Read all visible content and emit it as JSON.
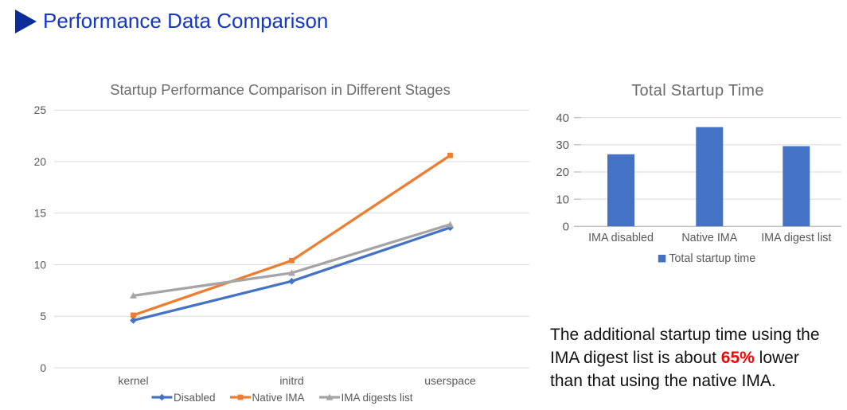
{
  "header": {
    "title": "Performance Data Comparison"
  },
  "annotation": {
    "before": "The additional startup time using the IMA digest list is about ",
    "highlight": "65%",
    "after": " lower than that using the native IMA.",
    "highlight_color": "#ff0000"
  },
  "chart_data": [
    {
      "type": "line",
      "title": "Startup Performance Comparison in Different Stages",
      "categories": [
        "kernel",
        "initrd",
        "userspace"
      ],
      "series": [
        {
          "name": "Disabled",
          "color": "#4472C4",
          "marker": "diamond",
          "values": [
            4.6,
            8.4,
            13.6
          ]
        },
        {
          "name": "Native IMA",
          "color": "#ED7D31",
          "marker": "square",
          "values": [
            5.1,
            10.4,
            20.6
          ]
        },
        {
          "name": "IMA digests list",
          "color": "#A5A5A5",
          "marker": "triangle",
          "values": [
            7.0,
            9.2,
            13.9
          ]
        }
      ],
      "ylim": [
        0,
        25
      ],
      "ytick_step": 5,
      "grid": true,
      "legend_position": "bottom"
    },
    {
      "type": "bar",
      "title": "Total Startup Time",
      "categories": [
        "IMA disabled",
        "Native IMA",
        "IMA digest list"
      ],
      "series": [
        {
          "name": "Total startup time",
          "color": "#4472C4",
          "values": [
            26.5,
            36.5,
            29.5
          ]
        }
      ],
      "ylim": [
        0,
        40
      ],
      "ytick_step": 10,
      "grid": true,
      "legend_position": "bottom"
    }
  ],
  "style": {
    "grid_color": "#D9D9D9",
    "axis_color": "#ABABAB",
    "tick_label_color": "#595959",
    "title_color": "#6b6b6b"
  }
}
